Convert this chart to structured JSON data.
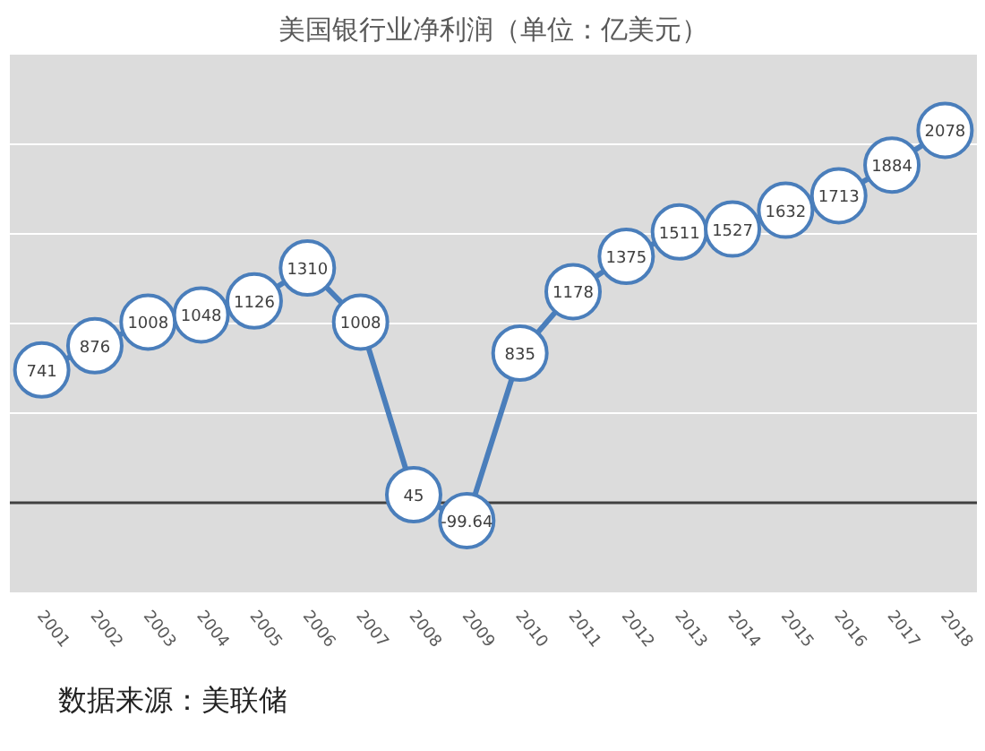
{
  "chart_data": {
    "type": "line",
    "title": "美国银行业净利润（单位：亿美元）",
    "categories": [
      "2001",
      "2002",
      "2003",
      "2004",
      "2005",
      "2006",
      "2007",
      "2008",
      "2009",
      "2010",
      "2011",
      "2012",
      "2013",
      "2014",
      "2015",
      "2016",
      "2017",
      "2018"
    ],
    "series": [
      {
        "color": "#4a7ebb",
        "values": [
          741,
          876,
          1008,
          1048,
          1126,
          1310,
          1008,
          45,
          -99.64,
          835,
          1178,
          1375,
          1511,
          1527,
          1632,
          1713,
          1884,
          2078
        ]
      }
    ],
    "ylim": [
      -500,
      2500
    ],
    "yticks": [
      {
        "value": -500,
        "label": null
      },
      {
        "value": 0,
        "label": null
      },
      {
        "value": 500,
        "label": null
      },
      {
        "value": 1000,
        "label": null
      },
      {
        "value": 1500,
        "label": null
      },
      {
        "value": 2000,
        "label": null
      },
      {
        "value": 2500,
        "label": null
      }
    ],
    "tick_labels": "x",
    "grid": "y",
    "marker": "circle",
    "line_style": "solid",
    "data_labels": true,
    "annotations": [
      "数据来源：美联储"
    ]
  }
}
